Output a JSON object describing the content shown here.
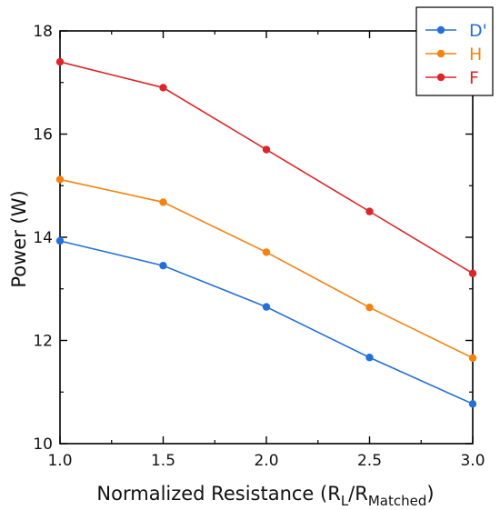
{
  "chart_data": {
    "type": "line",
    "x": [
      1.0,
      1.5,
      2.0,
      2.5,
      3.0
    ],
    "series": [
      {
        "name": "D'",
        "color": "#2470d8",
        "values": [
          13.93,
          13.45,
          12.65,
          11.67,
          10.77
        ]
      },
      {
        "name": "H",
        "color": "#f5820f",
        "values": [
          15.12,
          14.68,
          13.71,
          12.64,
          11.66
        ]
      },
      {
        "name": "F",
        "color": "#dc2528",
        "values": [
          17.4,
          16.9,
          15.7,
          14.5,
          13.3
        ]
      }
    ],
    "xlabel_main": "Normalized Resistance (R",
    "xlabel_sub1": "L",
    "xlabel_mid": "/R",
    "xlabel_sub2": "Matched",
    "xlabel_end": ")",
    "ylabel": "Power (W)",
    "xlim": [
      1.0,
      3.0
    ],
    "ylim": [
      10,
      18
    ],
    "xticks": [
      "1.0",
      "1.5",
      "2.0",
      "2.5",
      "3.0"
    ],
    "yticks": [
      "10",
      "12",
      "14",
      "16",
      "18"
    ],
    "legend_position": "top-right",
    "grid": false
  }
}
